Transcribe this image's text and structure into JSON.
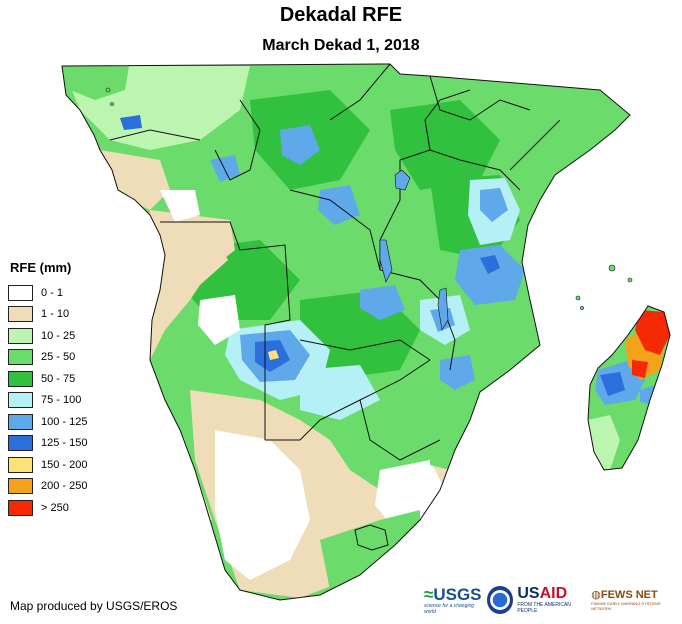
{
  "title": "Dekadal RFE",
  "subtitle": "March Dekad 1, 2018",
  "legend": {
    "title": "RFE (mm)",
    "items": [
      {
        "label": "0 - 1",
        "color": "#ffffff"
      },
      {
        "label": "1 - 10",
        "color": "#efdcb8"
      },
      {
        "label": "10 - 25",
        "color": "#bbf5b0"
      },
      {
        "label": "25 - 50",
        "color": "#6bdc6b"
      },
      {
        "label": "50 - 75",
        "color": "#32c03f"
      },
      {
        "label": "75 - 100",
        "color": "#b4f0f5"
      },
      {
        "label": "100 - 125",
        "color": "#5fa8ea"
      },
      {
        "label": "125 - 150",
        "color": "#2a6fdc"
      },
      {
        "label": "150 - 200",
        "color": "#fde27a"
      },
      {
        "label": "200 - 250",
        "color": "#f5a21b"
      },
      {
        "label": "> 250",
        "color": "#f52a05"
      }
    ]
  },
  "credit": "Map produced by USGS/EROS",
  "logos": {
    "usgs": {
      "prefix": "",
      "word": "USGS",
      "tagline": "science for a changing world",
      "icon": "usgs-wave-icon"
    },
    "noaa": {
      "icon": "noaa-seal-icon"
    },
    "usaid": {
      "us": "US",
      "aid": "AID",
      "tagline": "FROM THE AMERICAN PEOPLE"
    },
    "fews": {
      "word": "FEWS NET",
      "tagline": "FAMINE EARLY WARNING SYSTEMS NETWORK",
      "icon": "fews-globe-icon"
    }
  }
}
